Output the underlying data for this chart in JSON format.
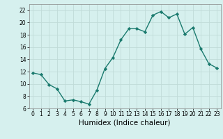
{
  "x": [
    0,
    1,
    2,
    3,
    4,
    5,
    6,
    7,
    8,
    9,
    10,
    11,
    12,
    13,
    14,
    15,
    16,
    17,
    18,
    19,
    20,
    21,
    22,
    23
  ],
  "y": [
    11.8,
    11.5,
    9.9,
    9.2,
    7.2,
    7.4,
    7.1,
    6.7,
    9.0,
    12.5,
    14.3,
    17.2,
    19.0,
    19.0,
    18.5,
    21.2,
    21.8,
    20.8,
    21.4,
    18.1,
    19.2,
    15.7,
    13.3,
    12.6
  ],
  "line_color": "#1a7a6e",
  "marker": "D",
  "marker_size": 2.2,
  "bg_color": "#d6f0ee",
  "grid_color": "#c0dbd8",
  "xlabel": "Humidex (Indice chaleur)",
  "ylim": [
    6,
    23
  ],
  "xlim": [
    -0.5,
    23.5
  ],
  "yticks": [
    6,
    8,
    10,
    12,
    14,
    16,
    18,
    20,
    22
  ],
  "xticks": [
    0,
    1,
    2,
    3,
    4,
    5,
    6,
    7,
    8,
    9,
    10,
    11,
    12,
    13,
    14,
    15,
    16,
    17,
    18,
    19,
    20,
    21,
    22,
    23
  ],
  "tick_fontsize": 5.5,
  "xlabel_fontsize": 7.5,
  "line_width": 1.0
}
